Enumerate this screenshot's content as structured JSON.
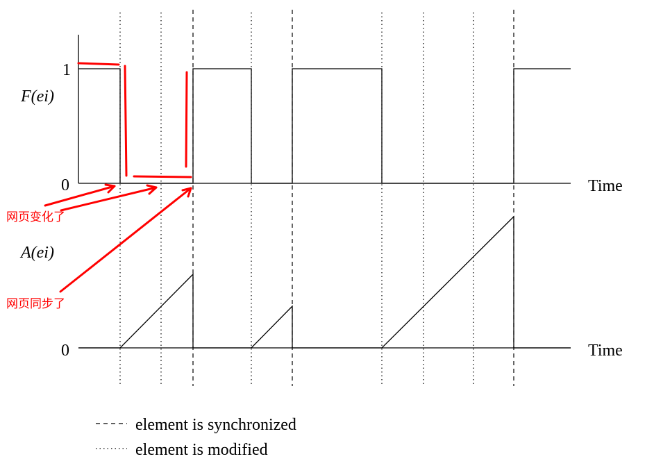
{
  "top_plot": {
    "ylabel": "F(ei)",
    "tick_one": "1",
    "tick_zero": "0",
    "xlabel": "Time"
  },
  "bottom_plot": {
    "ylabel": "A(ei)",
    "tick_zero": "0",
    "xlabel": "Time"
  },
  "annotations": {
    "page_changed": "网页变化了",
    "page_synced": "网页同步了"
  },
  "legend": {
    "synchronized": "element is synchronized",
    "modified": "element is modified"
  },
  "colors": {
    "line": "#000000",
    "annotation": "#ff0000"
  }
}
